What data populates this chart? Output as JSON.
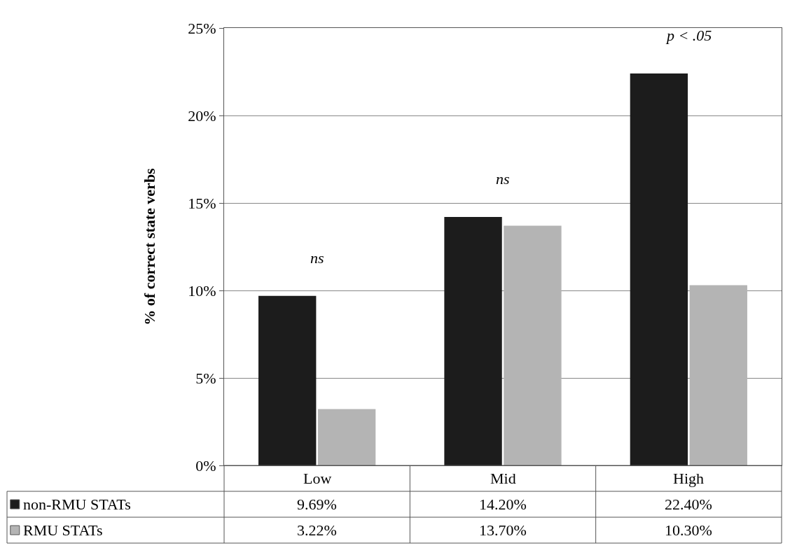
{
  "chart_data": {
    "type": "bar",
    "ylabel": "% of correct state verbs",
    "categories": [
      "Low",
      "Mid",
      "High"
    ],
    "series": [
      {
        "name": "non-RMU STATs",
        "color": "#1c1c1c",
        "values": [
          9.69,
          14.2,
          22.4
        ],
        "value_labels": [
          "9.69%",
          "14.20%",
          "22.40%"
        ]
      },
      {
        "name": "RMU STATs",
        "color": "#b4b4b4",
        "values": [
          3.22,
          13.7,
          10.3
        ],
        "value_labels": [
          "3.22%",
          "13.70%",
          "10.30%"
        ]
      }
    ],
    "ylim": [
      0,
      25
    ],
    "yticks": [
      {
        "value": 0,
        "label": "0%"
      },
      {
        "value": 5,
        "label": "5%"
      },
      {
        "value": 10,
        "label": "10%"
      },
      {
        "value": 15,
        "label": "15%"
      },
      {
        "value": 20,
        "label": "20%"
      },
      {
        "value": 25,
        "label": "25%"
      }
    ],
    "grid": "y",
    "legend": "bottom",
    "annotations": [
      "ns",
      "ns",
      "p < .05"
    ]
  }
}
